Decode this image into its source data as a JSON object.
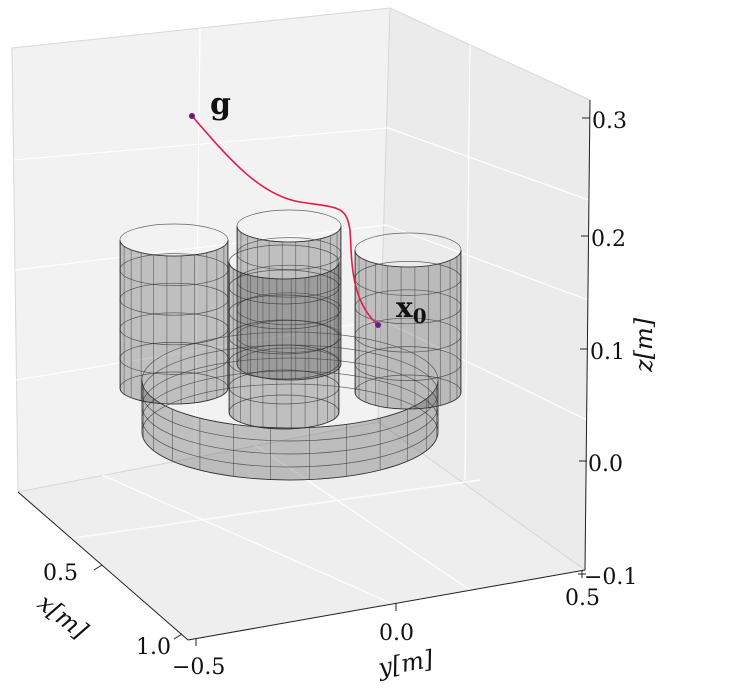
{
  "chart_data": {
    "type": "3d-line",
    "title": "",
    "xlabel": "x[m]",
    "ylabel": "y[m]",
    "zlabel": "z[m]",
    "x_ticks": [
      "0.5",
      "1.0"
    ],
    "y_ticks": [
      "−0.5",
      "0.0",
      "0.5"
    ],
    "z_ticks": [
      "−0.1",
      "0.0",
      "0.1",
      "0.2",
      "0.3"
    ],
    "grid": true,
    "series": [
      {
        "points": [
          [
            0.43,
            -0.44,
            0.3
          ],
          [
            0.52,
            -0.28,
            0.25
          ],
          [
            0.58,
            -0.1,
            0.22
          ],
          [
            0.62,
            0.05,
            0.21
          ],
          [
            0.66,
            0.1,
            0.15
          ],
          [
            0.7,
            0.12,
            0.12
          ]
        ],
        "color": "#e8194a"
      }
    ],
    "annotations": [
      {
        "label": "g",
        "role": "goal"
      },
      {
        "label": "x",
        "subscript": "0",
        "role": "start"
      }
    ],
    "obstacles": {
      "cylinders": 4,
      "ring": 1,
      "color": "#555555"
    }
  }
}
